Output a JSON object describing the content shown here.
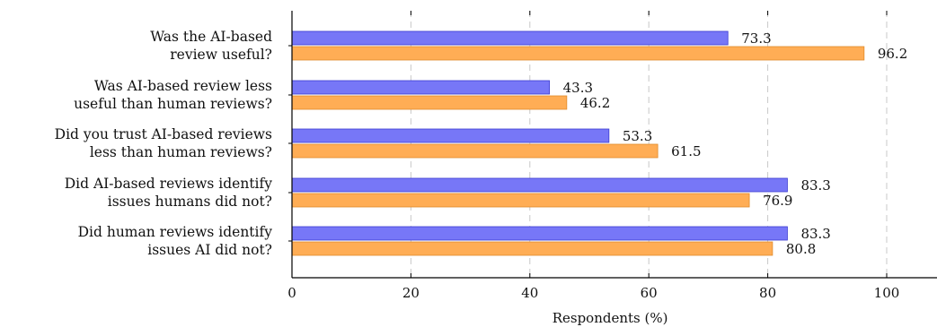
{
  "chart_data": {
    "type": "bar",
    "orientation": "horizontal",
    "categories": [
      [
        "Was the AI-based",
        "review useful?"
      ],
      [
        "Was AI-based review less",
        "useful than human reviews?"
      ],
      [
        "Did you trust AI-based reviews",
        "less than human reviews?"
      ],
      [
        "Did AI-based reviews identify",
        "issues humans did not?"
      ],
      [
        "Did human reviews identify",
        "issues AI did not?"
      ]
    ],
    "series": [
      {
        "values": [
          73.3,
          43.3,
          53.3,
          83.3,
          83.3
        ],
        "color": "#7777f7"
      },
      {
        "values": [
          96.2,
          46.2,
          61.5,
          76.9,
          80.8
        ],
        "color": "#ffad55"
      }
    ],
    "value_labels": [
      [
        "73.3",
        "43.3",
        "53.3",
        "83.3",
        "83.3"
      ],
      [
        "96.2",
        "46.2",
        "61.5",
        "76.9",
        "80.8"
      ]
    ],
    "xlabel": "Respondents (%)",
    "ylabel": "",
    "xlim": [
      0,
      110
    ],
    "xticks": [
      0,
      20,
      40,
      60,
      80,
      100
    ],
    "grid": "vertical dashed",
    "legend": "none"
  }
}
